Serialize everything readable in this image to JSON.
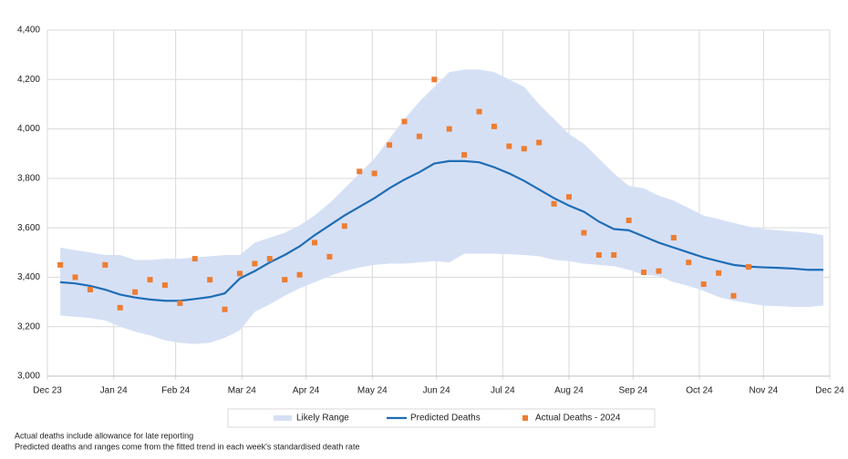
{
  "chart_data": {
    "type": "band-line-scatter",
    "x": [
      6,
      13,
      20,
      27,
      34,
      41,
      48,
      55,
      62,
      69,
      76,
      83,
      90,
      97,
      104,
      111,
      118,
      125,
      132,
      139,
      146,
      153,
      160,
      167,
      174,
      181,
      188,
      195,
      202,
      209,
      216,
      223,
      230,
      237,
      244,
      251,
      258,
      265,
      272,
      279,
      286,
      293,
      300,
      307,
      314,
      321,
      328,
      335,
      342,
      349,
      356,
      363
    ],
    "xlim": [
      0,
      366
    ],
    "xticks": [
      {
        "value": 0,
        "label": "Dec 23"
      },
      {
        "value": 31,
        "label": "Jan 24"
      },
      {
        "value": 60,
        "label": "Feb 24"
      },
      {
        "value": 91,
        "label": "Mar 24"
      },
      {
        "value": 121,
        "label": "Apr 24"
      },
      {
        "value": 152,
        "label": "May 24"
      },
      {
        "value": 182,
        "label": "Jun 24"
      },
      {
        "value": 213,
        "label": "Jul 24"
      },
      {
        "value": 244,
        "label": "Aug 24"
      },
      {
        "value": 274,
        "label": "Sep 24"
      },
      {
        "value": 305,
        "label": "Oct 24"
      },
      {
        "value": 335,
        "label": "Nov 24"
      },
      {
        "value": 366,
        "label": "Dec 24"
      }
    ],
    "ylim": [
      3000,
      4400
    ],
    "yticks": [
      {
        "value": 3000,
        "label": "3,000"
      },
      {
        "value": 3200,
        "label": "3,200"
      },
      {
        "value": 3400,
        "label": "3,400"
      },
      {
        "value": 3600,
        "label": "3,600"
      },
      {
        "value": 3800,
        "label": "3,800"
      },
      {
        "value": 4000,
        "label": "4,000"
      },
      {
        "value": 4200,
        "label": "4,200"
      },
      {
        "value": 4400,
        "label": "4,400"
      }
    ],
    "grid": true,
    "legend": "bottom",
    "series": [
      {
        "name": "Likely Range",
        "color": "#d6e0f5",
        "high": [
          3520,
          3510,
          3500,
          3490,
          3490,
          3470,
          3470,
          3475,
          3475,
          3480,
          3485,
          3490,
          3490,
          3540,
          3560,
          3580,
          3610,
          3650,
          3700,
          3760,
          3820,
          3880,
          3960,
          4040,
          4110,
          4170,
          4230,
          4240,
          4240,
          4230,
          4200,
          4170,
          4100,
          4040,
          3980,
          3940,
          3880,
          3820,
          3770,
          3760,
          3730,
          3710,
          3680,
          3650,
          3635,
          3620,
          3605,
          3595,
          3590,
          3585,
          3580,
          3570
        ],
        "low": [
          3245,
          3240,
          3235,
          3225,
          3200,
          3180,
          3165,
          3145,
          3135,
          3130,
          3135,
          3155,
          3185,
          3260,
          3290,
          3325,
          3355,
          3380,
          3405,
          3425,
          3440,
          3450,
          3455,
          3455,
          3460,
          3465,
          3460,
          3495,
          3495,
          3495,
          3493,
          3490,
          3485,
          3470,
          3465,
          3455,
          3450,
          3445,
          3430,
          3410,
          3405,
          3380,
          3365,
          3345,
          3320,
          3305,
          3295,
          3285,
          3283,
          3280,
          3280,
          3285
        ]
      },
      {
        "name": "Predicted Deaths",
        "color": "#1f6db5",
        "values": [
          3380,
          3375,
          3365,
          3350,
          3330,
          3318,
          3310,
          3305,
          3305,
          3312,
          3320,
          3335,
          3395,
          3425,
          3460,
          3490,
          3525,
          3570,
          3610,
          3650,
          3685,
          3720,
          3760,
          3795,
          3825,
          3860,
          3870,
          3870,
          3865,
          3845,
          3820,
          3790,
          3755,
          3720,
          3690,
          3665,
          3625,
          3595,
          3590,
          3565,
          3540,
          3520,
          3500,
          3480,
          3465,
          3450,
          3443,
          3440,
          3438,
          3435,
          3430,
          3430
        ]
      },
      {
        "name": "Actual Deaths - 2024",
        "color": "#ed7d31",
        "values": [
          3450,
          3400,
          3350,
          3450,
          3277,
          3340,
          3390,
          3368,
          3295,
          3475,
          3390,
          3270,
          3415,
          3455,
          3475,
          3390,
          3410,
          3540,
          3483,
          3607,
          3828,
          3820,
          3935,
          4030,
          3970,
          4200,
          4000,
          3895,
          4070,
          4010,
          3930,
          3920,
          3945,
          3697,
          3725,
          3580,
          3490,
          3490,
          3630,
          3420,
          3425,
          3560,
          3460,
          3372,
          3417,
          3325,
          3442,
          null,
          null,
          null,
          null,
          null
        ]
      }
    ],
    "notes": [
      "Actual deaths include allowance for late reporting",
      "Predicted deaths and ranges come from the fitted trend in each week's standardised death rate"
    ]
  }
}
